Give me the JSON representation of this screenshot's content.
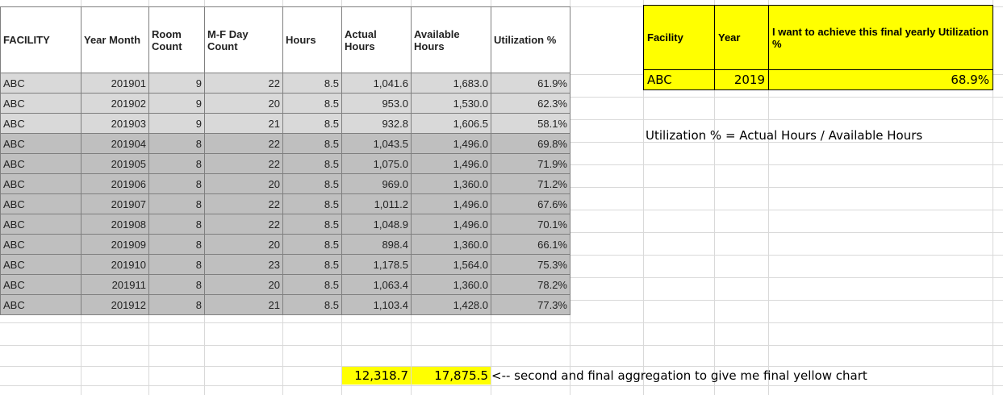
{
  "main_table": {
    "headers": [
      "FACILITY",
      "Year Month",
      "Room Count",
      "M-F Day Count",
      "Hours",
      "Actual Hours",
      "Available Hours",
      "Utilization %"
    ],
    "rows": [
      [
        "ABC",
        "201901",
        "9",
        "22",
        "8.5",
        "1,041.6",
        "1,683.0",
        "61.9%"
      ],
      [
        "ABC",
        "201902",
        "9",
        "20",
        "8.5",
        "953.0",
        "1,530.0",
        "62.3%"
      ],
      [
        "ABC",
        "201903",
        "9",
        "21",
        "8.5",
        "932.8",
        "1,606.5",
        "58.1%"
      ],
      [
        "ABC",
        "201904",
        "8",
        "22",
        "8.5",
        "1,043.5",
        "1,496.0",
        "69.8%"
      ],
      [
        "ABC",
        "201905",
        "8",
        "22",
        "8.5",
        "1,075.0",
        "1,496.0",
        "71.9%"
      ],
      [
        "ABC",
        "201906",
        "8",
        "20",
        "8.5",
        "969.0",
        "1,360.0",
        "71.2%"
      ],
      [
        "ABC",
        "201907",
        "8",
        "22",
        "8.5",
        "1,011.2",
        "1,496.0",
        "67.6%"
      ],
      [
        "ABC",
        "201908",
        "8",
        "22",
        "8.5",
        "1,048.9",
        "1,496.0",
        "70.1%"
      ],
      [
        "ABC",
        "201909",
        "8",
        "20",
        "8.5",
        "898.4",
        "1,360.0",
        "66.1%"
      ],
      [
        "ABC",
        "201910",
        "8",
        "23",
        "8.5",
        "1,178.5",
        "1,564.0",
        "75.3%"
      ],
      [
        "ABC",
        "201911",
        "8",
        "20",
        "8.5",
        "1,063.4",
        "1,360.0",
        "78.2%"
      ],
      [
        "ABC",
        "201912",
        "8",
        "21",
        "8.5",
        "1,103.4",
        "1,428.0",
        "77.3%"
      ]
    ]
  },
  "totals": {
    "actual_hours": "12,318.7",
    "available_hours": "17,875.5",
    "note": "<-- second and final aggregation to give me final yellow chart"
  },
  "summary": {
    "headers": [
      "Facility",
      "Year",
      "I want to achieve this final yearly Utilization %"
    ],
    "facility": "ABC",
    "year": "2019",
    "utilization": "68.9%"
  },
  "formula": "Utilization % = Actual Hours / Available Hours",
  "colors": {
    "highlight": "#ffff00",
    "row_light": "#d9d9d9",
    "row_dark": "#bfbfbf",
    "gridline": "#d9d9d9"
  }
}
